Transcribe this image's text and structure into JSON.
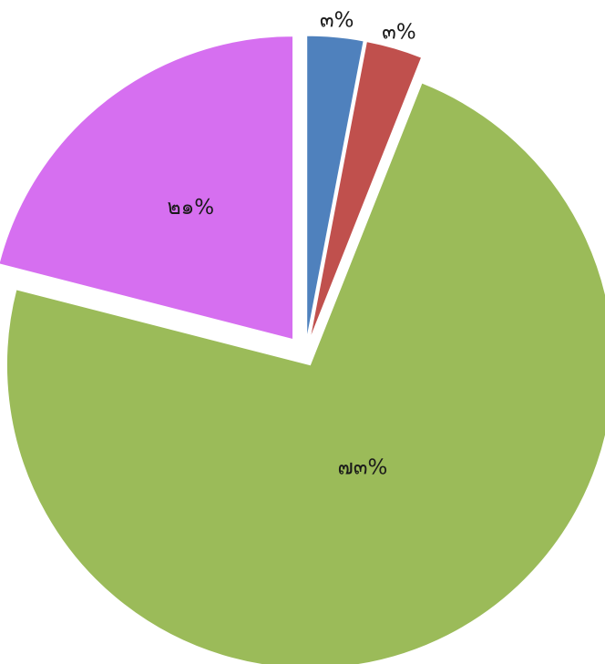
{
  "chart_data": {
    "type": "pie",
    "title": "",
    "start_angle_deg": 0,
    "direction": "clockwise",
    "legend": "none",
    "slices": [
      {
        "value": 3,
        "label": "๓%",
        "color": "#4f81bd",
        "label_position": "outside"
      },
      {
        "value": 3,
        "label": "๓%",
        "color": "#c0504d",
        "label_position": "outside"
      },
      {
        "value": 73,
        "label": "๗๓%",
        "color": "#9bbb59",
        "label_position": "inside"
      },
      {
        "value": 21,
        "label": "๒๑%",
        "color": "#d66ff0",
        "label_position": "inside"
      }
    ]
  }
}
